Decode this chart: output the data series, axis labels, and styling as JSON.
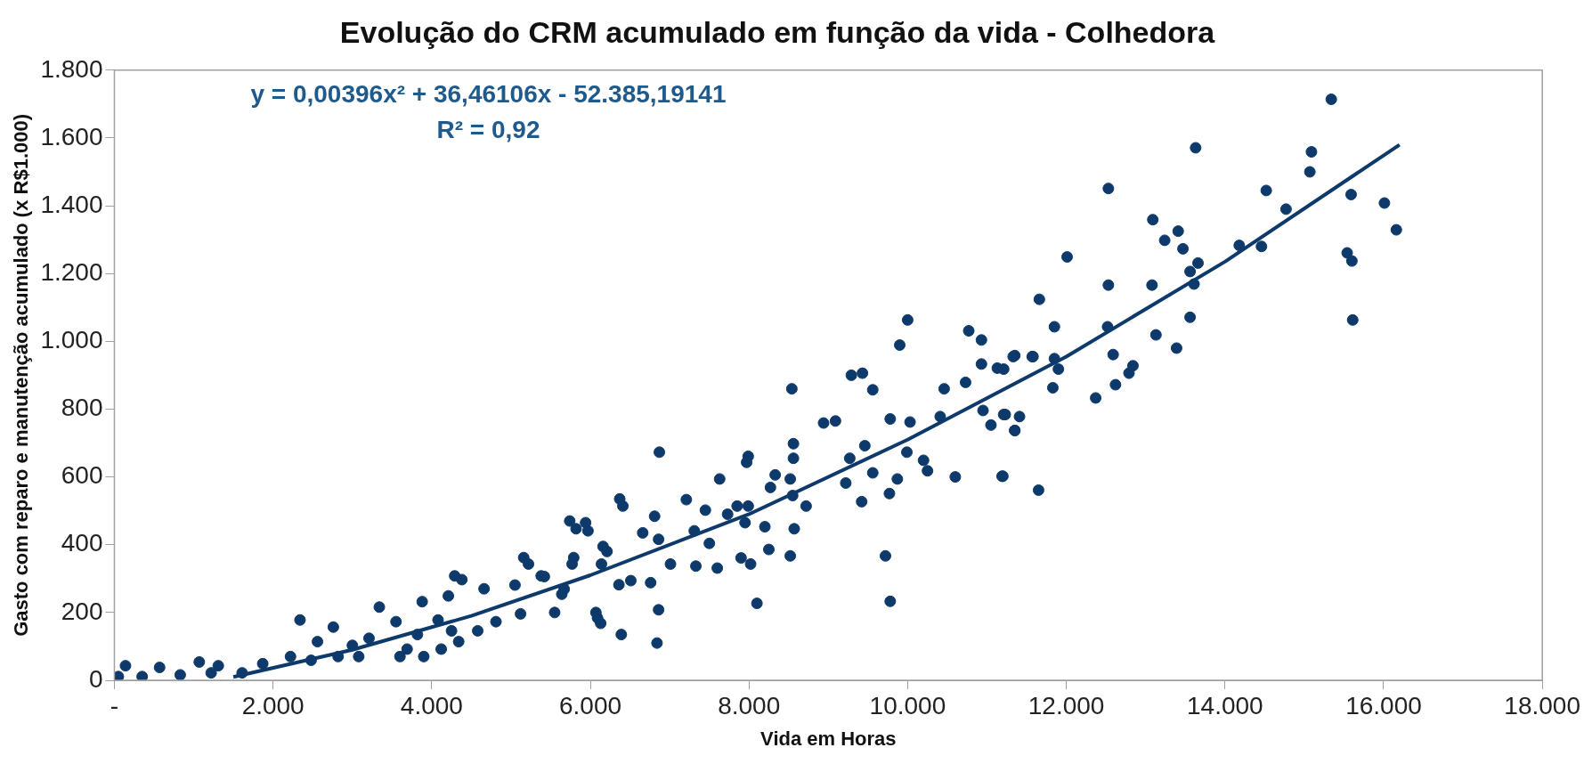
{
  "chart_data": {
    "type": "scatter",
    "title": "Evolução do CRM acumulado em função da vida - Colhedora",
    "xlabel": "Vida em Horas",
    "ylabel": "Gasto com reparo e manutenção acumulado (x R$1.000)",
    "annotations": [
      "y = 0,00396x² + 36,46106x - 52.385,19141",
      "R² = 0,92"
    ],
    "xlim": [
      0,
      18000
    ],
    "xticks": [
      {
        "value": 0,
        "label": "-"
      },
      {
        "value": 2000,
        "label": "2.000"
      },
      {
        "value": 4000,
        "label": "4.000"
      },
      {
        "value": 6000,
        "label": "6.000"
      },
      {
        "value": 8000,
        "label": "8.000"
      },
      {
        "value": 10000,
        "label": "10.000"
      },
      {
        "value": 12000,
        "label": "12.000"
      },
      {
        "value": 14000,
        "label": "14.000"
      },
      {
        "value": 16000,
        "label": "16.000"
      },
      {
        "value": 18000,
        "label": "18.000"
      }
    ],
    "ylim": [
      0,
      1800
    ],
    "yticks": [
      0,
      200,
      400,
      600,
      800,
      {
        "value": 1000,
        "label": "1.000"
      },
      {
        "value": 1200,
        "label": "1.200"
      },
      {
        "value": 1400,
        "label": "1.400"
      },
      {
        "value": 1600,
        "label": "1.600"
      },
      {
        "value": 1800,
        "label": "1.800"
      }
    ],
    "grid": false,
    "legend": false,
    "marker": "circle",
    "series": [
      {
        "color": "#0d3a6b",
        "x": [
          15340,
          13630,
          12530,
          15090,
          15070,
          14520,
          14770,
          15590,
          16010,
          16160,
          15540,
          15600,
          15610,
          13090,
          13410,
          13240,
          13470,
          13660,
          13560,
          13610,
          14180,
          14460,
          12010,
          12530,
          13080,
          11660,
          11850,
          12520,
          13560,
          13130,
          13390,
          11350,
          11580,
          11850,
          11900,
          12590,
          12840,
          12790,
          12620,
          11830,
          12370,
          11210,
          11210,
          11410,
          11350,
          11200,
          11650,
          10000,
          9900,
          10770,
          10930,
          10930,
          11130,
          11330,
          11570,
          10730,
          10460,
          10950,
          11050,
          11230,
          11350,
          10410,
          10030,
          9780,
          9290,
          9430,
          9560,
          8940,
          9090,
          8540,
          8560,
          8560,
          9990,
          9460,
          9270,
          9560,
          10200,
          10250,
          10600,
          11190,
          9220,
          9420,
          9770,
          9870,
          9720,
          9780,
          7990,
          7970,
          7630,
          8330,
          8520,
          8550,
          8720,
          8270,
          7850,
          7990,
          7730,
          7950,
          7210,
          7450,
          7310,
          7500,
          8200,
          8250,
          8520,
          8570,
          7900,
          8020,
          8100,
          7600,
          7330,
          6870,
          6410,
          6810,
          6660,
          7010,
          6860,
          5820,
          5970,
          5770,
          6210,
          6140,
          6360,
          6510,
          6760,
          6860,
          6840,
          5220,
          5420,
          5670,
          5120,
          6090,
          6390,
          6370,
          5740,
          5940,
          5160,
          5790,
          6160,
          4290,
          4380,
          4660,
          4210,
          3340,
          3880,
          3550,
          2340,
          2760,
          4580,
          4810,
          5050,
          5380,
          6070,
          6130,
          5640,
          5550,
          4080,
          4250,
          3820,
          3690,
          3210,
          3000,
          2560,
          2220,
          1870,
          1610,
          1310,
          1070,
          570,
          140,
          830,
          50,
          350,
          1220,
          4120,
          4340,
          3900,
          3600,
          2820,
          3080,
          2480
        ],
        "values": [
          1714,
          1571,
          1451,
          1559,
          1500,
          1445,
          1390,
          1433,
          1408,
          1329,
          1261,
          1237,
          1063,
          1359,
          1325,
          1298,
          1273,
          1231,
          1206,
          1169,
          1283,
          1280,
          1249,
          1166,
          1166,
          1124,
          1043,
          1043,
          1071,
          1019,
          980,
          958,
          955,
          949,
          918,
          961,
          928,
          906,
          872,
          863,
          833,
          918,
          784,
          778,
          737,
          602,
          561,
          1063,
          989,
          1031,
          1004,
          933,
          921,
          955,
          955,
          879,
          860,
          796,
          753,
          784,
          737,
          778,
          762,
          771,
          900,
          906,
          857,
          759,
          765,
          860,
          698,
          655,
          673,
          692,
          655,
          612,
          649,
          618,
          600,
          602,
          582,
          527,
          551,
          594,
          367,
          233,
          661,
          643,
          594,
          606,
          594,
          545,
          514,
          569,
          514,
          514,
          490,
          465,
          533,
          502,
          441,
          404,
          453,
          386,
          367,
          447,
          361,
          343,
          227,
          331,
          337,
          673,
          514,
          484,
          435,
          343,
          416,
          447,
          441,
          343,
          380,
          343,
          282,
          294,
          288,
          208,
          110,
          343,
          306,
          269,
          196,
          184,
          135,
          535,
          470,
          465,
          362,
          362,
          395,
          308,
          297,
          270,
          249,
          216,
          232,
          173,
          178,
          157,
          146,
          173,
          281,
          308,
          200,
          168,
          254,
          200,
          178,
          146,
          135,
          92,
          124,
          103,
          114,
          70,
          49,
          22,
          43,
          54,
          38,
          43,
          16,
          11,
          11,
          22,
          92,
          114,
          70,
          70,
          70,
          70,
          59
        ]
      },
      {
        "type": "line",
        "color": "#0d3a6b",
        "marker": "none",
        "x": [
          1500,
          3000,
          4500,
          6000,
          8000,
          10000,
          12000,
          14000,
          16200
        ],
        "values": [
          10,
          90,
          190,
          310,
          490,
          710,
          955,
          1235,
          1580
        ]
      }
    ]
  }
}
